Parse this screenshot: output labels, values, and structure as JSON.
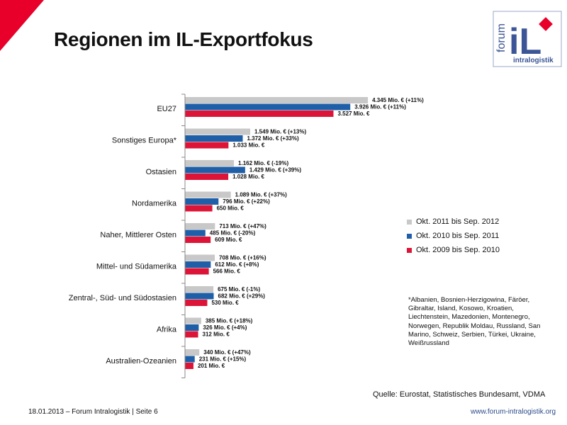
{
  "slide": {
    "title": "Regionen im IL-Exportfokus",
    "logo": {
      "word": "forum",
      "letters": "iL",
      "subtitle": "intralogistik"
    },
    "footnote": "*Albanien, Bosnien-Herzigowina, Färöer, Gibraltar, Island, Kosowo, Kroatien, Liechtenstein, Mazedonien, Montenegro, Norwegen, Republik Moldau, Russland, San Marino, Schweiz, Serbien, Türkei, Ukraine, Weißrussland",
    "source": "Quelle: Eurostat, Statistisches Bundesamt, VDMA",
    "footer_left": "18.01.2013 – Forum Intralogistik  | Seite 6",
    "footer_right": "www.forum-intralogistik.org"
  },
  "colors": {
    "accent": "#e8002a",
    "series": [
      "#c8c8c8",
      "#1f5fa8",
      "#dc1437"
    ]
  },
  "chart_data": {
    "type": "bar",
    "orientation": "horizontal",
    "categories": [
      "EU27",
      "Sonstiges Europa*",
      "Ostasien",
      "Nordamerika",
      "Naher, Mittlerer Osten",
      "Mittel- und Südamerika",
      "Zentral-, Süd- und Südostasien",
      "Afrika",
      "Australien-Ozeanien"
    ],
    "series": [
      {
        "name": "Okt. 2011 bis Sep. 2012",
        "values": [
          4345,
          1549,
          1162,
          1089,
          713,
          708,
          675,
          385,
          340
        ],
        "labels": [
          "4.345 Mio. €  (+11%)",
          "1.549 Mio. €  (+13%)",
          "1.162 Mio. €  (-19%)",
          "1.089 Mio. €  (+37%)",
          "713 Mio. €  (+47%)",
          "708 Mio. €  (+16%)",
          "675 Mio. €  (-1%)",
          "385 Mio. €  (+18%)",
          "340 Mio. €  (+47%)"
        ]
      },
      {
        "name": "Okt. 2010 bis Sep. 2011",
        "values": [
          3926,
          1372,
          1429,
          796,
          485,
          612,
          682,
          326,
          231
        ],
        "labels": [
          "3.926 Mio. €  (+11%)",
          "1.372 Mio. €  (+33%)",
          "1.429 Mio. €  (+39%)",
          "796 Mio. €  (+22%)",
          "485 Mio. €  (-20%)",
          "612 Mio. €  (+8%)",
          "682 Mio. €  (+29%)",
          "326 Mio. €  (+4%)",
          "231 Mio. €  (+15%)"
        ]
      },
      {
        "name": "Okt. 2009 bis Sep. 2010",
        "values": [
          3527,
          1033,
          1028,
          650,
          609,
          566,
          530,
          312,
          201
        ],
        "labels": [
          "3.527 Mio. €",
          "1.033 Mio. €",
          "1.028 Mio. €",
          "650 Mio. €",
          "609 Mio. €",
          "566 Mio. €",
          "530 Mio. €",
          "312 Mio. €",
          "201 Mio. €"
        ]
      }
    ],
    "unit": "Mio. €",
    "legend": "right"
  }
}
